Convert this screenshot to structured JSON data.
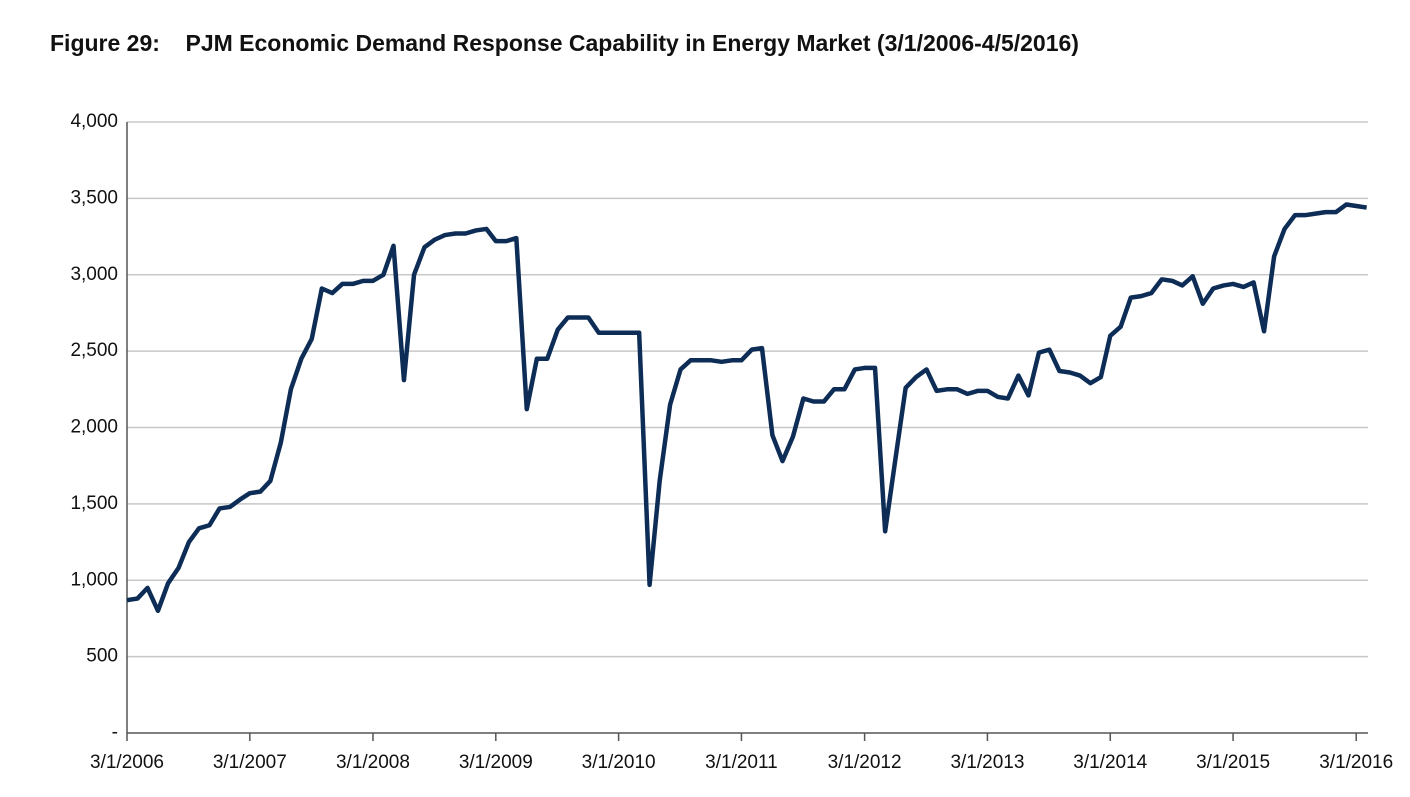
{
  "chart_data": {
    "type": "line",
    "title": "Figure 29:    PJM Economic Demand Response Capability in Energy Market (3/1/2006-4/5/2016)",
    "x": [
      "3/1/2006",
      "4/1/2006",
      "5/1/2006",
      "6/1/2006",
      "7/1/2006",
      "8/1/2006",
      "9/1/2006",
      "10/1/2006",
      "11/1/2006",
      "12/1/2006",
      "1/1/2007",
      "2/1/2007",
      "3/1/2007",
      "4/1/2007",
      "5/1/2007",
      "6/1/2007",
      "7/1/2007",
      "8/1/2007",
      "9/1/2007",
      "10/1/2007",
      "11/1/2007",
      "12/1/2007",
      "1/1/2008",
      "2/1/2008",
      "3/1/2008",
      "4/1/2008",
      "5/1/2008",
      "6/1/2008",
      "7/1/2008",
      "8/1/2008",
      "9/1/2008",
      "10/1/2008",
      "11/1/2008",
      "12/1/2008",
      "1/1/2009",
      "2/1/2009",
      "3/1/2009",
      "4/1/2009",
      "5/1/2009",
      "6/1/2009",
      "7/1/2009",
      "8/1/2009",
      "9/1/2009",
      "10/1/2009",
      "11/1/2009",
      "12/1/2009",
      "1/1/2010",
      "2/1/2010",
      "3/1/2010",
      "4/1/2010",
      "5/1/2010",
      "6/1/2010",
      "7/1/2010",
      "8/1/2010",
      "9/1/2010",
      "10/1/2010",
      "11/1/2010",
      "12/1/2010",
      "1/1/2011",
      "2/1/2011",
      "3/1/2011",
      "4/1/2011",
      "5/1/2011",
      "6/1/2011",
      "7/1/2011",
      "8/1/2011",
      "9/1/2011",
      "10/1/2011",
      "11/1/2011",
      "12/1/2011",
      "1/1/2012",
      "2/1/2012",
      "3/1/2012",
      "4/1/2012",
      "5/1/2012",
      "6/1/2012",
      "7/1/2012",
      "8/1/2012",
      "9/1/2012",
      "10/1/2012",
      "11/1/2012",
      "12/1/2012",
      "1/1/2013",
      "2/1/2013",
      "3/1/2013",
      "4/1/2013",
      "5/1/2013",
      "6/1/2013",
      "7/1/2013",
      "8/1/2013",
      "9/1/2013",
      "10/1/2013",
      "11/1/2013",
      "12/1/2013",
      "1/1/2014",
      "2/1/2014",
      "3/1/2014",
      "4/1/2014",
      "5/1/2014",
      "6/1/2014",
      "7/1/2014",
      "8/1/2014",
      "9/1/2014",
      "10/1/2014",
      "11/1/2014",
      "12/1/2014",
      "1/1/2015",
      "2/1/2015",
      "3/1/2015",
      "4/1/2015",
      "5/1/2015",
      "6/1/2015",
      "7/1/2015",
      "8/1/2015",
      "9/1/2015",
      "10/1/2015",
      "11/1/2015",
      "12/1/2015",
      "1/1/2016",
      "2/1/2016",
      "3/1/2016",
      "4/1/2016"
    ],
    "series": [
      {
        "name": "Economic demand response capability",
        "color": "#0d2d56",
        "values": [
          870,
          880,
          950,
          800,
          980,
          1080,
          1250,
          1340,
          1360,
          1470,
          1480,
          1530,
          1570,
          1580,
          1650,
          1900,
          2250,
          2450,
          2580,
          2910,
          2880,
          2940,
          2940,
          2960,
          2960,
          3000,
          3190,
          2310,
          3000,
          3180,
          3230,
          3260,
          3270,
          3270,
          3290,
          3300,
          3220,
          3220,
          3240,
          2120,
          2450,
          2450,
          2640,
          2720,
          2720,
          2720,
          2620,
          2620,
          2620,
          2620,
          2620,
          970,
          1650,
          2150,
          2380,
          2440,
          2440,
          2440,
          2430,
          2440,
          2440,
          2510,
          2520,
          1950,
          1780,
          1940,
          2190,
          2170,
          2170,
          2250,
          2250,
          2380,
          2390,
          2390,
          1320,
          1800,
          2260,
          2330,
          2380,
          2240,
          2250,
          2250,
          2220,
          2240,
          2240,
          2200,
          2190,
          2340,
          2210,
          2490,
          2510,
          2370,
          2360,
          2340,
          2290,
          2330,
          2600,
          2660,
          2850,
          2860,
          2880,
          2970,
          2960,
          2930,
          2990,
          2810,
          2910,
          2930,
          2940,
          2920,
          2950,
          2630,
          3120,
          3300,
          3390,
          3390,
          3400,
          3410,
          3410,
          3460,
          3450,
          3440
        ]
      }
    ],
    "xlim": [
      "3/1/2006",
      "4/5/2016"
    ],
    "xticks": [
      "3/1/2006",
      "3/1/2007",
      "3/1/2008",
      "3/1/2009",
      "3/1/2010",
      "3/1/2011",
      "3/1/2012",
      "3/1/2013",
      "3/1/2014",
      "3/1/2015",
      "3/1/2016"
    ],
    "ylim": [
      0,
      4000
    ],
    "yticks": [
      {
        "value": 0,
        "label": "-"
      },
      500,
      {
        "value": 1000,
        "label": "1,000"
      },
      {
        "value": 1500,
        "label": "1,500"
      },
      {
        "value": 2000,
        "label": "2,000"
      },
      {
        "value": 2500,
        "label": "2,500"
      },
      {
        "value": 3000,
        "label": "3,000"
      },
      {
        "value": 3500,
        "label": "3,500"
      },
      {
        "value": 4000,
        "label": "4,000"
      }
    ],
    "grid": true
  }
}
